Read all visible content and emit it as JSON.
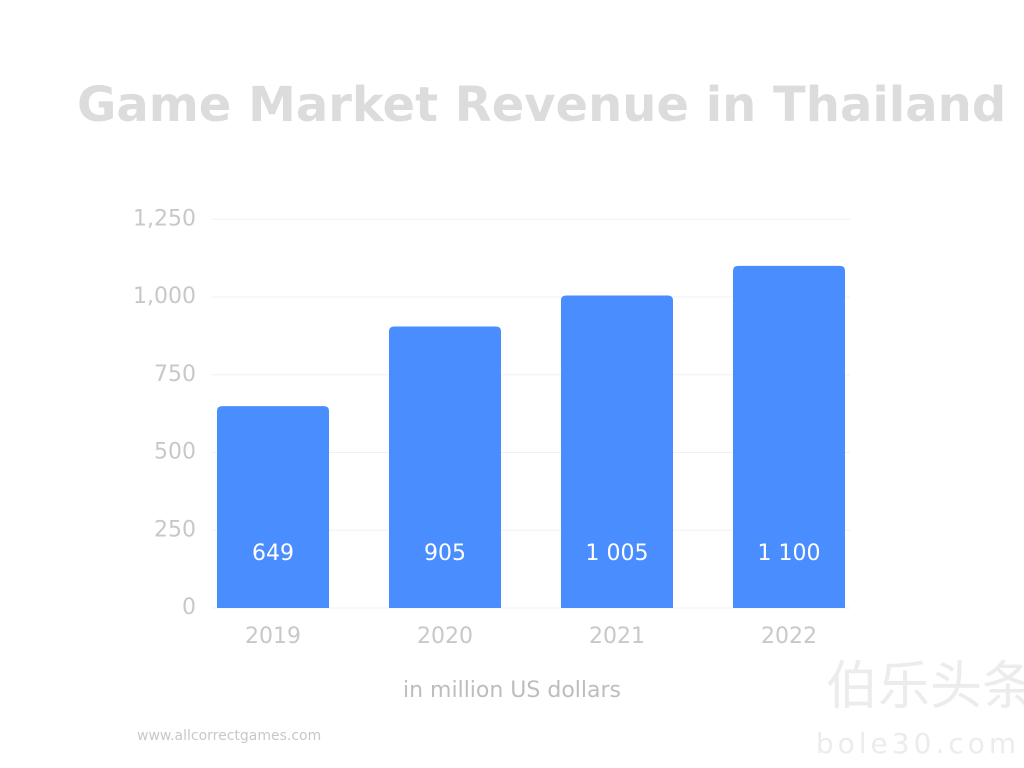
{
  "chart_data": {
    "type": "bar",
    "title": "Game Market Revenue in Thailand",
    "categories": [
      "2019",
      "2020",
      "2021",
      "2022"
    ],
    "values": [
      649,
      905,
      1005,
      1100
    ],
    "value_labels": [
      "649",
      "905",
      "1 005",
      "1 100"
    ],
    "color": "#4a8dff",
    "ylim": [
      0,
      1250
    ],
    "yticks": [
      0,
      250,
      500,
      750,
      {
        "value": 1000,
        "label": "1,000"
      },
      {
        "value": 1250,
        "label": "1,250"
      }
    ],
    "grid": true,
    "xlabel": "in million US dollars",
    "source": "www.allcorrectgames.com",
    "watermark": {
      "logo": "伯乐头条",
      "site": "bole30.com"
    }
  }
}
